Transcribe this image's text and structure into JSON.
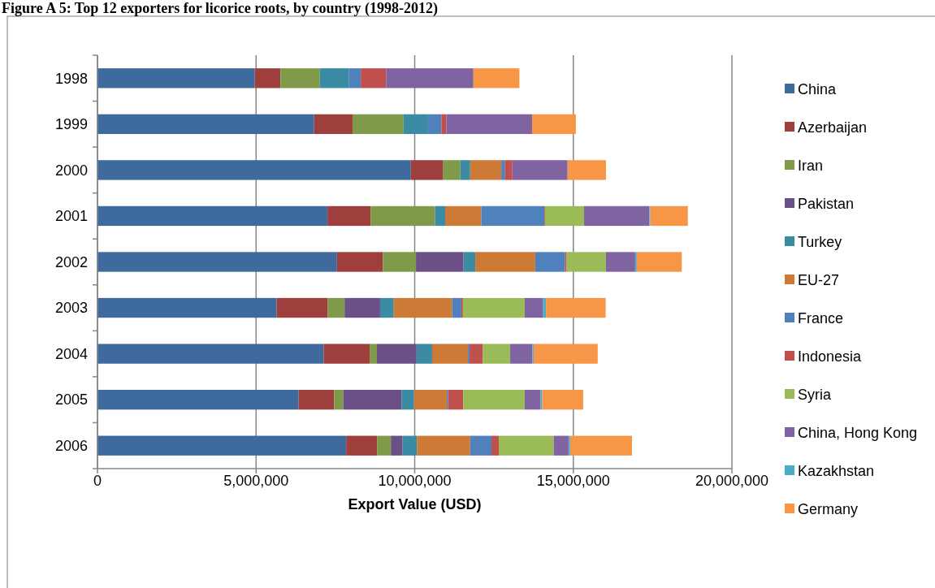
{
  "chart_data": {
    "type": "bar",
    "orientation": "horizontal",
    "stacked": true,
    "title": "Figure A 5: Top 12 exporters for licorice roots, by country (1998-2012)",
    "xlabel": "Export Value (USD)",
    "categories": [
      "1998",
      "1999",
      "2000",
      "2001",
      "2002",
      "2003",
      "2004",
      "2005",
      "2006"
    ],
    "xlim": [
      0,
      20000000
    ],
    "xticks": [
      0,
      {
        "value": 5000000,
        "label": "5,000,000"
      },
      {
        "value": 10000000,
        "label": "10,000,000"
      },
      {
        "value": 15000000,
        "label": "15,000,000"
      },
      {
        "value": 20000000,
        "label": "20,000,000"
      }
    ],
    "grid": "x",
    "legend": "right",
    "series": [
      {
        "name": "China",
        "color": "#3f6a9e",
        "values": [
          4960000,
          6830000,
          9880000,
          7250000,
          7550000,
          5650000,
          7130000,
          6340000,
          7840000
        ]
      },
      {
        "name": "Azerbaijan",
        "color": "#9e3f3e",
        "values": [
          810000,
          1210000,
          1020000,
          1360000,
          1450000,
          1610000,
          1450000,
          1120000,
          980000
        ]
      },
      {
        "name": "Iran",
        "color": "#7f9a48",
        "values": [
          1240000,
          1610000,
          540000,
          2030000,
          1040000,
          530000,
          230000,
          290000,
          430000
        ]
      },
      {
        "name": "Pakistan",
        "color": "#6a5087",
        "values": [
          0,
          0,
          0,
          0,
          1500000,
          1120000,
          1250000,
          1840000,
          370000
        ]
      },
      {
        "name": "Turkey",
        "color": "#3a8ba3",
        "values": [
          920000,
          770000,
          310000,
          320000,
          370000,
          430000,
          490000,
          390000,
          450000
        ]
      },
      {
        "name": "EU-27",
        "color": "#cc7a35",
        "values": [
          0,
          0,
          980000,
          1140000,
          1890000,
          1840000,
          1130000,
          1030000,
          1680000
        ]
      },
      {
        "name": "France",
        "color": "#4f81bd",
        "values": [
          370000,
          420000,
          120000,
          1990000,
          940000,
          290000,
          50000,
          40000,
          670000
        ]
      },
      {
        "name": "Indonesia",
        "color": "#c0504d",
        "values": [
          800000,
          160000,
          230000,
          20000,
          50000,
          50000,
          420000,
          480000,
          230000
        ]
      },
      {
        "name": "Syria",
        "color": "#9bbb59",
        "values": [
          0,
          0,
          0,
          1230000,
          1240000,
          1950000,
          860000,
          1940000,
          1730000
        ]
      },
      {
        "name": "China, Hong Kong",
        "color": "#8064a2",
        "values": [
          2750000,
          2700000,
          1740000,
          2060000,
          920000,
          580000,
          700000,
          500000,
          470000
        ]
      },
      {
        "name": "Kazakhstan",
        "color": "#4bacc6",
        "values": [
          0,
          0,
          0,
          30000,
          50000,
          90000,
          40000,
          50000,
          50000
        ]
      },
      {
        "name": "Germany",
        "color": "#f79646",
        "values": [
          1450000,
          1380000,
          1210000,
          1180000,
          1420000,
          1880000,
          2020000,
          1290000,
          1950000
        ]
      }
    ]
  }
}
